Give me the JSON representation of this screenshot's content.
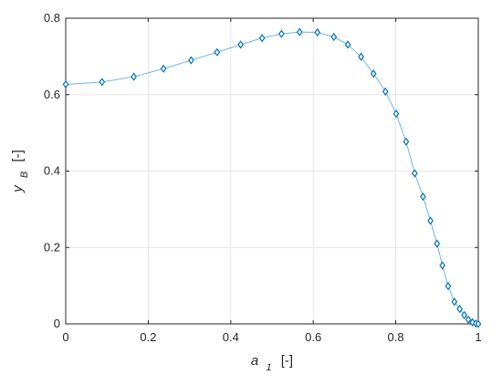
{
  "chart_data": {
    "type": "line",
    "xlabel": {
      "main": "a",
      "sub": "1",
      "unit": "[-]"
    },
    "ylabel": {
      "main": "y",
      "sub": "B",
      "unit": "[-]"
    },
    "xlim": [
      0,
      1
    ],
    "ylim": [
      0,
      0.8
    ],
    "xticks": [
      "0",
      "0.2",
      "0.4",
      "0.6",
      "0.8",
      "1"
    ],
    "yticks": [
      "0",
      "0.2",
      "0.4",
      "0.6",
      "0.8"
    ],
    "grid": true,
    "series": [
      {
        "color": "#0072BD",
        "line_color": "#6BB6E8",
        "marker": "diamond",
        "points": [
          [
            0.0,
            0.627
          ],
          [
            0.088,
            0.633
          ],
          [
            0.165,
            0.647
          ],
          [
            0.237,
            0.668
          ],
          [
            0.304,
            0.69
          ],
          [
            0.367,
            0.711
          ],
          [
            0.424,
            0.731
          ],
          [
            0.476,
            0.748
          ],
          [
            0.523,
            0.759
          ],
          [
            0.567,
            0.764
          ],
          [
            0.61,
            0.763
          ],
          [
            0.65,
            0.751
          ],
          [
            0.684,
            0.731
          ],
          [
            0.716,
            0.699
          ],
          [
            0.746,
            0.655
          ],
          [
            0.775,
            0.608
          ],
          [
            0.801,
            0.55
          ],
          [
            0.825,
            0.477
          ],
          [
            0.846,
            0.394
          ],
          [
            0.866,
            0.333
          ],
          [
            0.884,
            0.27
          ],
          [
            0.9,
            0.21
          ],
          [
            0.913,
            0.153
          ],
          [
            0.927,
            0.099
          ],
          [
            0.942,
            0.058
          ],
          [
            0.955,
            0.039
          ],
          [
            0.966,
            0.023
          ],
          [
            0.976,
            0.011
          ],
          [
            0.986,
            0.004
          ],
          [
            0.994,
            0.001
          ],
          [
            1.0,
            0.0
          ]
        ]
      }
    ]
  }
}
